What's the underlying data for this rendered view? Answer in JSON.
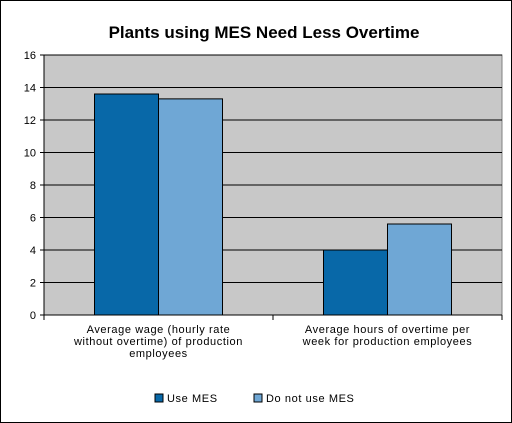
{
  "chart_data": {
    "type": "bar",
    "title": "Plants using MES Need Less Overtime",
    "categories": [
      [
        "Average wage (hourly rate",
        "without overtime) of production",
        "employees"
      ],
      [
        "Average hours of overtime per",
        "week for production employees"
      ]
    ],
    "series": [
      {
        "name": "Use MES",
        "values": [
          13.6,
          4.0
        ],
        "color": "#0868A8"
      },
      {
        "name": "Do not use MES",
        "values": [
          13.3,
          5.6
        ],
        "color": "#6FA7D5"
      }
    ],
    "yticks": [
      0,
      2,
      4,
      6,
      8,
      10,
      12,
      14,
      16
    ],
    "ylim": [
      0,
      16
    ],
    "grid": true,
    "plot_background": "#C8C8C8",
    "legend_position": "bottom"
  }
}
